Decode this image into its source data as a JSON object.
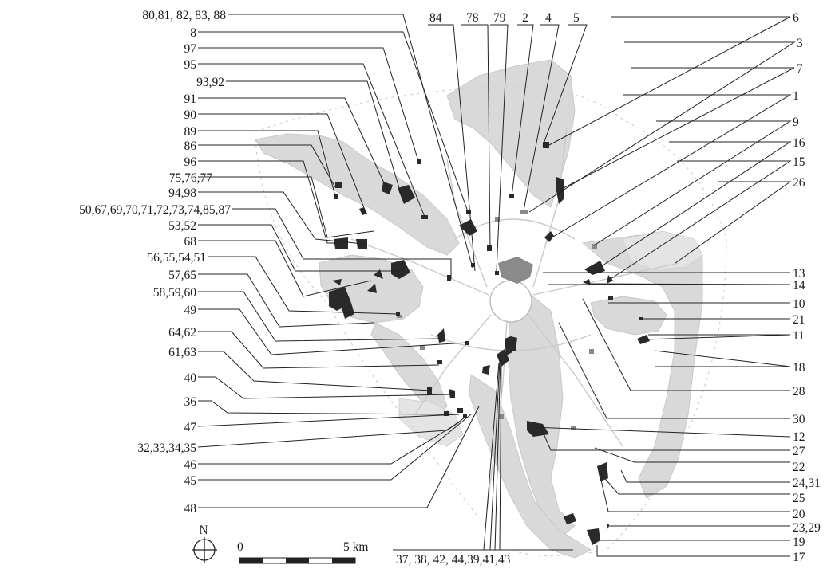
{
  "labels_top": [
    "84",
    "78",
    "79",
    "2",
    "4",
    "5"
  ],
  "labels_left": [
    "80,81, 82, 83, 88",
    "8",
    "97",
    "95",
    "93,92",
    "91",
    "90",
    "89",
    "86",
    "96",
    "75,76,77",
    "94,98",
    "50,67,69,70,71,72,73,74,85,87",
    "53,52",
    "68",
    "56,55,54,51",
    "57,65",
    "58,59,60",
    "49",
    "64,62",
    "61,63",
    "40",
    "36",
    "47",
    "32,33,34,35",
    "46",
    "45",
    "48"
  ],
  "labels_right": [
    "6",
    "3",
    "7",
    "1",
    "9",
    "16",
    "15",
    "26",
    "13",
    "14",
    "10",
    "21",
    "11",
    "18",
    "28",
    "30",
    "12",
    "27",
    "22",
    "24,31",
    "25",
    "20",
    "23,29",
    "19",
    "17"
  ],
  "label_bottom": "37, 38, 42, 44,39,41,43",
  "north": {
    "label": "N",
    "icon": "north-arrow-icon"
  },
  "scalebar": {
    "start": "0",
    "end": "5 km"
  }
}
